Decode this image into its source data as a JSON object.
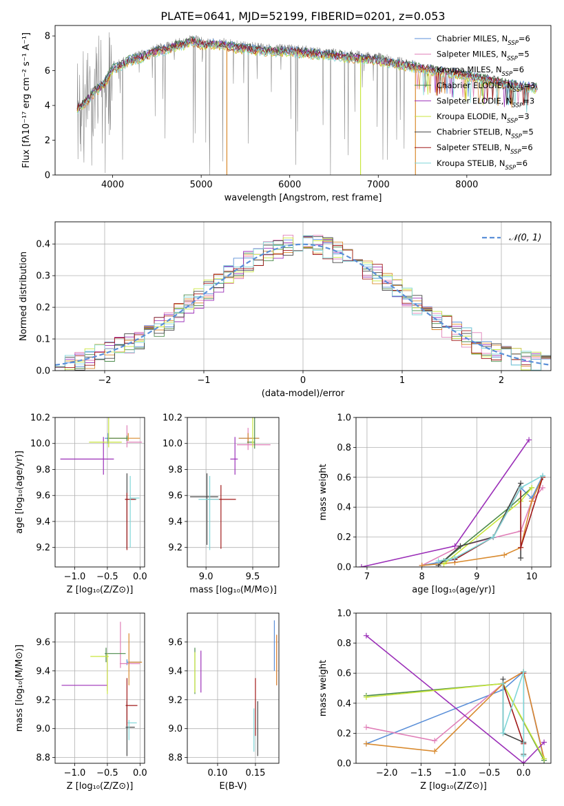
{
  "figure_title": "PLATE=0641, MJD=52199, FIBERID=0201, z=0.053",
  "models": [
    {
      "label": "Chabrier MILES, N",
      "sub": "SSP",
      "suffix": "=6",
      "color": "#5a8fd8"
    },
    {
      "label": "Salpeter MILES, N",
      "sub": "SSP",
      "suffix": "=5",
      "color": "#e07fb8"
    },
    {
      "label": "Kroupa MILES, N",
      "sub": "SSP",
      "suffix": "=6",
      "color": "#d98a2e"
    },
    {
      "label": "Chabrier ELODIE, N",
      "sub": "SSP",
      "suffix": "=3",
      "color": "#4a8a4a"
    },
    {
      "label": "Salpeter ELODIE, N",
      "sub": "SSP",
      "suffix": "=3",
      "color": "#9b2fb8"
    },
    {
      "label": "Kroupa ELODIE, N",
      "sub": "SSP",
      "suffix": "=3",
      "color": "#c8e63c"
    },
    {
      "label": "Chabrier STELIB, N",
      "sub": "SSP",
      "suffix": "=5",
      "color": "#444444"
    },
    {
      "label": "Salpeter STELIB, N",
      "sub": "SSP",
      "suffix": "=6",
      "color": "#a01818"
    },
    {
      "label": "Kroupa STELIB, N",
      "sub": "SSP",
      "suffix": "=6",
      "color": "#7fd6d8"
    }
  ],
  "chart_data": [
    {
      "id": "spectrum",
      "type": "line",
      "xlabel": "wavelength [Angstrom, rest frame]",
      "ylabel": "Flux [fλ10⁻¹⁷ erg cm⁻² s⁻¹ A⁻¹]",
      "xlim": [
        3350,
        8950
      ],
      "ylim": [
        0,
        8.6
      ],
      "xticks": [
        4000,
        5000,
        6000,
        7000,
        8000
      ],
      "yticks": [
        0,
        2,
        4,
        6,
        8
      ],
      "grid": false,
      "legend": "upper-right",
      "continuum": {
        "x": [
          3600,
          3700,
          3800,
          3900,
          4000,
          4100,
          4200,
          4300,
          4400,
          4500,
          4600,
          4700,
          4800,
          4900,
          5000,
          5200,
          5400,
          5600,
          5800,
          6000,
          6200,
          6400,
          6600,
          6800,
          7000,
          7200,
          7400,
          7600,
          7800,
          8000,
          8200,
          8400,
          8600,
          8800
        ],
        "y": [
          3.9,
          4.3,
          4.9,
          5.3,
          6.2,
          6.4,
          6.7,
          6.8,
          7.0,
          7.2,
          7.3,
          7.5,
          7.6,
          7.8,
          7.6,
          7.6,
          7.4,
          7.3,
          7.2,
          7.2,
          7.1,
          7.0,
          6.9,
          6.8,
          6.7,
          6.5,
          6.3,
          6.1,
          6.0,
          5.8,
          5.6,
          5.4,
          5.2,
          5.1
        ]
      },
      "data_range": [
        3600,
        7420
      ],
      "model_range": [
        3600,
        8800
      ],
      "dropouts": [
        5290,
        6800,
        7420
      ]
    },
    {
      "id": "residuals",
      "type": "histogram",
      "xlabel": "(data-model)/error",
      "ylabel": "Normed distribution",
      "xlim": [
        -2.5,
        2.5
      ],
      "ylim": [
        0,
        0.47
      ],
      "xticks": [
        -2,
        -1,
        0,
        1,
        2
      ],
      "yticks": [
        0.0,
        0.1,
        0.2,
        0.3,
        0.4
      ],
      "grid": true,
      "legend": "upper-right",
      "reference_label": "𝒩(0, 1)",
      "bin_width": 0.1
    },
    {
      "id": "age-vs-Z",
      "type": "errorbar",
      "xlabel": "Z [log₁₀(Z/Z⊙)]",
      "ylabel": "age  [log₁₀(age/yr)]",
      "xlim": [
        -1.3,
        0.07
      ],
      "ylim": [
        9.05,
        10.2
      ],
      "xticks": [
        -1.0,
        -0.5,
        0.0
      ],
      "yticks": [
        9.2,
        9.4,
        9.6,
        9.8,
        10.0,
        10.2
      ],
      "points": [
        {
          "x": -0.49,
          "xerr": [
            0.05,
            0.03
          ],
          "y": 10.04,
          "yerr": [
            0.04,
            0.04
          ]
        },
        {
          "x": -0.2,
          "xerr": [
            0.0,
            0.23
          ],
          "y": 10.01,
          "yerr": [
            0.04,
            0.13
          ]
        },
        {
          "x": -0.18,
          "xerr": [
            0.3,
            0.18
          ],
          "y": 10.04,
          "yerr": [
            0.02,
            0.04
          ]
        },
        {
          "x": -0.2,
          "xerr": [
            0.3,
            0.0
          ],
          "y": 10.04,
          "yerr": [
            0.02,
            0.02
          ]
        },
        {
          "x": -0.56,
          "xerr": [
            0.66,
            0.16
          ],
          "y": 9.88,
          "yerr": [
            0.12,
            0.17
          ]
        },
        {
          "x": -0.48,
          "xerr": [
            0.3,
            0.2
          ],
          "y": 10.01,
          "yerr": [
            0.04,
            0.28
          ]
        },
        {
          "x": -0.2,
          "xerr": [
            0.03,
            0.14
          ],
          "y": 9.57,
          "yerr": [
            0.38,
            0.2
          ]
        },
        {
          "x": -0.2,
          "xerr": [
            0.03,
            0.12
          ],
          "y": 9.57,
          "yerr": [
            0.39,
            0.05
          ]
        },
        {
          "x": -0.15,
          "xerr": [
            0.01,
            0.14
          ],
          "y": 9.58,
          "yerr": [
            0.38,
            0.17
          ]
        }
      ]
    },
    {
      "id": "age-vs-mass",
      "type": "errorbar",
      "xlabel": "mass [log₁₀(M/M⊙)]",
      "ylabel": "",
      "xlim": [
        8.8,
        9.78
      ],
      "ylim": [
        9.05,
        10.2
      ],
      "xticks": [
        9.0,
        9.5
      ],
      "yticks": [
        9.2,
        9.4,
        9.6,
        9.8,
        10.0,
        10.2
      ],
      "points": [
        {
          "x": 9.45,
          "xerr": [
            0.1,
            0.12
          ],
          "y": 10.04,
          "yerr": [
            0.04,
            0.04
          ]
        },
        {
          "x": 9.45,
          "xerr": [
            0.12,
            0.24
          ],
          "y": 9.99,
          "yerr": [
            0.04,
            0.13
          ]
        },
        {
          "x": 9.45,
          "xerr": [
            0.1,
            0.12
          ],
          "y": 10.04,
          "yerr": [
            0.04,
            0.04
          ]
        },
        {
          "x": 9.52,
          "xerr": [
            0.08,
            0.0
          ],
          "y": 10.01,
          "yerr": [
            0.05,
            0.27
          ]
        },
        {
          "x": 9.31,
          "xerr": [
            0.05,
            0.03
          ],
          "y": 9.88,
          "yerr": [
            0.12,
            0.17
          ]
        },
        {
          "x": 9.5,
          "xerr": [
            0.01,
            0.01
          ],
          "y": 10.01,
          "yerr": [
            0.04,
            0.28
          ]
        },
        {
          "x": 9.01,
          "xerr": [
            0.18,
            0.12
          ],
          "y": 9.59,
          "yerr": [
            0.37,
            0.18
          ]
        },
        {
          "x": 9.16,
          "xerr": [
            0.14,
            0.16
          ],
          "y": 9.57,
          "yerr": [
            0.38,
            0.11
          ]
        },
        {
          "x": 9.04,
          "xerr": [
            0.12,
            0.1
          ],
          "y": 9.57,
          "yerr": [
            0.39,
            0.18
          ]
        }
      ]
    },
    {
      "id": "mass-weight-vs-age",
      "type": "line",
      "xlabel": "age  [log₁₀(age/yr)]",
      "ylabel": "mass weight",
      "xlim": [
        6.8,
        10.35
      ],
      "ylim": [
        0,
        1.0
      ],
      "xticks": [
        7,
        8,
        9,
        10
      ],
      "yticks": [
        0.0,
        0.2,
        0.4,
        0.6,
        0.8,
        1.0
      ],
      "grid": true,
      "series": [
        {
          "x": [
            8.0,
            8.3,
            8.6,
            9.3,
            9.8,
            10.0,
            10.2
          ],
          "y": [
            0.01,
            0.03,
            0.05,
            0.2,
            0.53,
            0.46,
            0.61
          ]
        },
        {
          "x": [
            8.0,
            8.7,
            9.8,
            10.0,
            10.2
          ],
          "y": [
            0.01,
            0.14,
            0.24,
            0.44,
            0.53
          ]
        },
        {
          "x": [
            8.0,
            8.6,
            9.5,
            9.8,
            10.0,
            10.2
          ],
          "y": [
            0.01,
            0.03,
            0.08,
            0.13,
            0.44,
            0.6
          ]
        },
        {
          "x": [
            8.4,
            9.6,
            10.0
          ],
          "y": [
            0.04,
            0.4,
            0.53
          ]
        },
        {
          "x": [
            6.9,
            8.6,
            9.95
          ],
          "y": [
            0.0,
            0.14,
            0.85
          ]
        },
        {
          "x": [
            8.4,
            9.8,
            10.0
          ],
          "y": [
            0.02,
            0.44,
            0.53
          ]
        },
        {
          "x": [
            8.3,
            8.7,
            9.3,
            9.8,
            9.8
          ],
          "y": [
            0.01,
            0.14,
            0.2,
            0.56,
            0.06
          ]
        },
        {
          "x": [
            8.6,
            9.3,
            9.8,
            9.8,
            10.2
          ],
          "y": [
            0.05,
            0.2,
            0.53,
            0.13,
            0.6
          ]
        },
        {
          "x": [
            8.3,
            8.6,
            9.3,
            9.8,
            10.2
          ],
          "y": [
            0.04,
            0.06,
            0.2,
            0.53,
            0.61
          ]
        }
      ]
    },
    {
      "id": "mass-vs-Z",
      "type": "errorbar",
      "xlabel": "Z [log₁₀(Z/Z⊙)]",
      "ylabel": "mass [log₁₀(M/M⊙)]",
      "xlim": [
        -1.3,
        0.07
      ],
      "ylim": [
        8.76,
        9.8
      ],
      "xticks": [
        -1.0,
        -0.5,
        0.0
      ],
      "yticks": [
        8.8,
        9.0,
        9.2,
        9.4,
        9.6
      ],
      "points": [
        {
          "x": -0.2,
          "xerr": [
            0.0,
            0.22
          ],
          "y": 9.46,
          "yerr": [
            0.02,
            0.02
          ]
        },
        {
          "x": -0.3,
          "xerr": [
            0.01,
            0.3
          ],
          "y": 9.45,
          "yerr": [
            0.03,
            0.29
          ]
        },
        {
          "x": -0.17,
          "xerr": [
            0.0,
            0.2
          ],
          "y": 9.46,
          "yerr": [
            0.16,
            0.2
          ]
        },
        {
          "x": -0.52,
          "xerr": [
            0.02,
            0.3
          ],
          "y": 9.52,
          "yerr": [
            0.06,
            0.04
          ]
        },
        {
          "x": -0.5,
          "xerr": [
            0.7,
            0.0
          ],
          "y": 9.3,
          "yerr": [
            0.04,
            0.22
          ]
        },
        {
          "x": -0.5,
          "xerr": [
            0.26,
            0.02
          ],
          "y": 9.5,
          "yerr": [
            0.26,
            0.02
          ]
        },
        {
          "x": -0.2,
          "xerr": [
            0.02,
            0.12
          ],
          "y": 9.01,
          "yerr": [
            0.2,
            0.18
          ]
        },
        {
          "x": -0.2,
          "xerr": [
            0.02,
            0.16
          ],
          "y": 9.16,
          "yerr": [
            0.14,
            0.19
          ]
        },
        {
          "x": -0.17,
          "xerr": [
            0.02,
            0.12
          ],
          "y": 9.04,
          "yerr": [
            0.12,
            0.02
          ]
        }
      ]
    },
    {
      "id": "mass-vs-EBV",
      "type": "errorbar",
      "xlabel": "E(B-V)",
      "ylabel": "",
      "xlim": [
        0.06,
        0.181
      ],
      "ylim": [
        8.76,
        9.8
      ],
      "xticks": [
        0.1,
        0.15
      ],
      "yticks": [
        8.8,
        9.0,
        9.2,
        9.4,
        9.6
      ],
      "points": [
        {
          "x": 0.175,
          "xerr": [
            0.0,
            0.0
          ],
          "y": 9.55,
          "yerr": [
            0.15,
            0.2
          ]
        },
        {
          "x": 0.178,
          "xerr": [
            0.0,
            0.0
          ],
          "y": 9.48,
          "yerr": [
            0.18,
            0.17
          ]
        },
        {
          "x": 0.178,
          "xerr": [
            0.0,
            0.0
          ],
          "y": 9.5,
          "yerr": [
            0.2,
            0.15
          ]
        },
        {
          "x": 0.07,
          "xerr": [
            0.0,
            0.0
          ],
          "y": 9.44,
          "yerr": [
            0.2,
            0.12
          ]
        },
        {
          "x": 0.078,
          "xerr": [
            0.0,
            0.0
          ],
          "y": 9.4,
          "yerr": [
            0.15,
            0.14
          ]
        },
        {
          "x": 0.07,
          "xerr": [
            0.0,
            0.0
          ],
          "y": 9.38,
          "yerr": [
            0.13,
            0.15
          ]
        },
        {
          "x": 0.153,
          "xerr": [
            0.0,
            0.0
          ],
          "y": 9.01,
          "yerr": [
            0.2,
            0.18
          ]
        },
        {
          "x": 0.15,
          "xerr": [
            0.0,
            0.0
          ],
          "y": 9.16,
          "yerr": [
            0.21,
            0.19
          ]
        },
        {
          "x": 0.148,
          "xerr": [
            0.0,
            0.0
          ],
          "y": 9.04,
          "yerr": [
            0.2,
            0.1
          ]
        }
      ]
    },
    {
      "id": "mass-weight-vs-Z",
      "type": "line",
      "xlabel": "Z [log₁₀(Z/Z⊙)]",
      "ylabel": "mass weight",
      "xlim": [
        -2.45,
        0.4
      ],
      "ylim": [
        0,
        1.0
      ],
      "xticks": [
        -2.0,
        -1.5,
        -1.0,
        -0.5,
        0.0
      ],
      "yticks": [
        0.0,
        0.2,
        0.4,
        0.6,
        0.8,
        1.0
      ],
      "grid": true,
      "series": [
        {
          "x": [
            -2.3,
            -0.3,
            0.0,
            0.3
          ],
          "y": [
            0.13,
            0.49,
            0.61,
            0.02
          ]
        },
        {
          "x": [
            -2.3,
            -1.3,
            -0.3,
            0.0,
            0.3
          ],
          "y": [
            0.24,
            0.15,
            0.53,
            0.61,
            0.03
          ]
        },
        {
          "x": [
            -2.3,
            -1.3,
            -0.3,
            0.0,
            0.3
          ],
          "y": [
            0.13,
            0.08,
            0.53,
            0.61,
            0.03
          ]
        },
        {
          "x": [
            -2.3,
            -0.3,
            0.3
          ],
          "y": [
            0.45,
            0.53,
            0.02
          ]
        },
        {
          "x": [
            -2.3,
            0.0,
            0.3
          ],
          "y": [
            0.85,
            0.0,
            0.14
          ]
        },
        {
          "x": [
            -2.3,
            -0.3,
            0.3
          ],
          "y": [
            0.44,
            0.53,
            0.03
          ]
        },
        {
          "x": [
            -0.3,
            -0.3,
            0.0,
            0.0
          ],
          "y": [
            0.56,
            0.2,
            0.14,
            0.06
          ]
        },
        {
          "x": [
            -0.3,
            0.0,
            0.0
          ],
          "y": [
            0.53,
            0.13,
            0.6
          ]
        },
        {
          "x": [
            -0.3,
            -0.3,
            0.0,
            0.0
          ],
          "y": [
            0.53,
            0.2,
            0.61,
            0.05
          ]
        }
      ]
    }
  ]
}
